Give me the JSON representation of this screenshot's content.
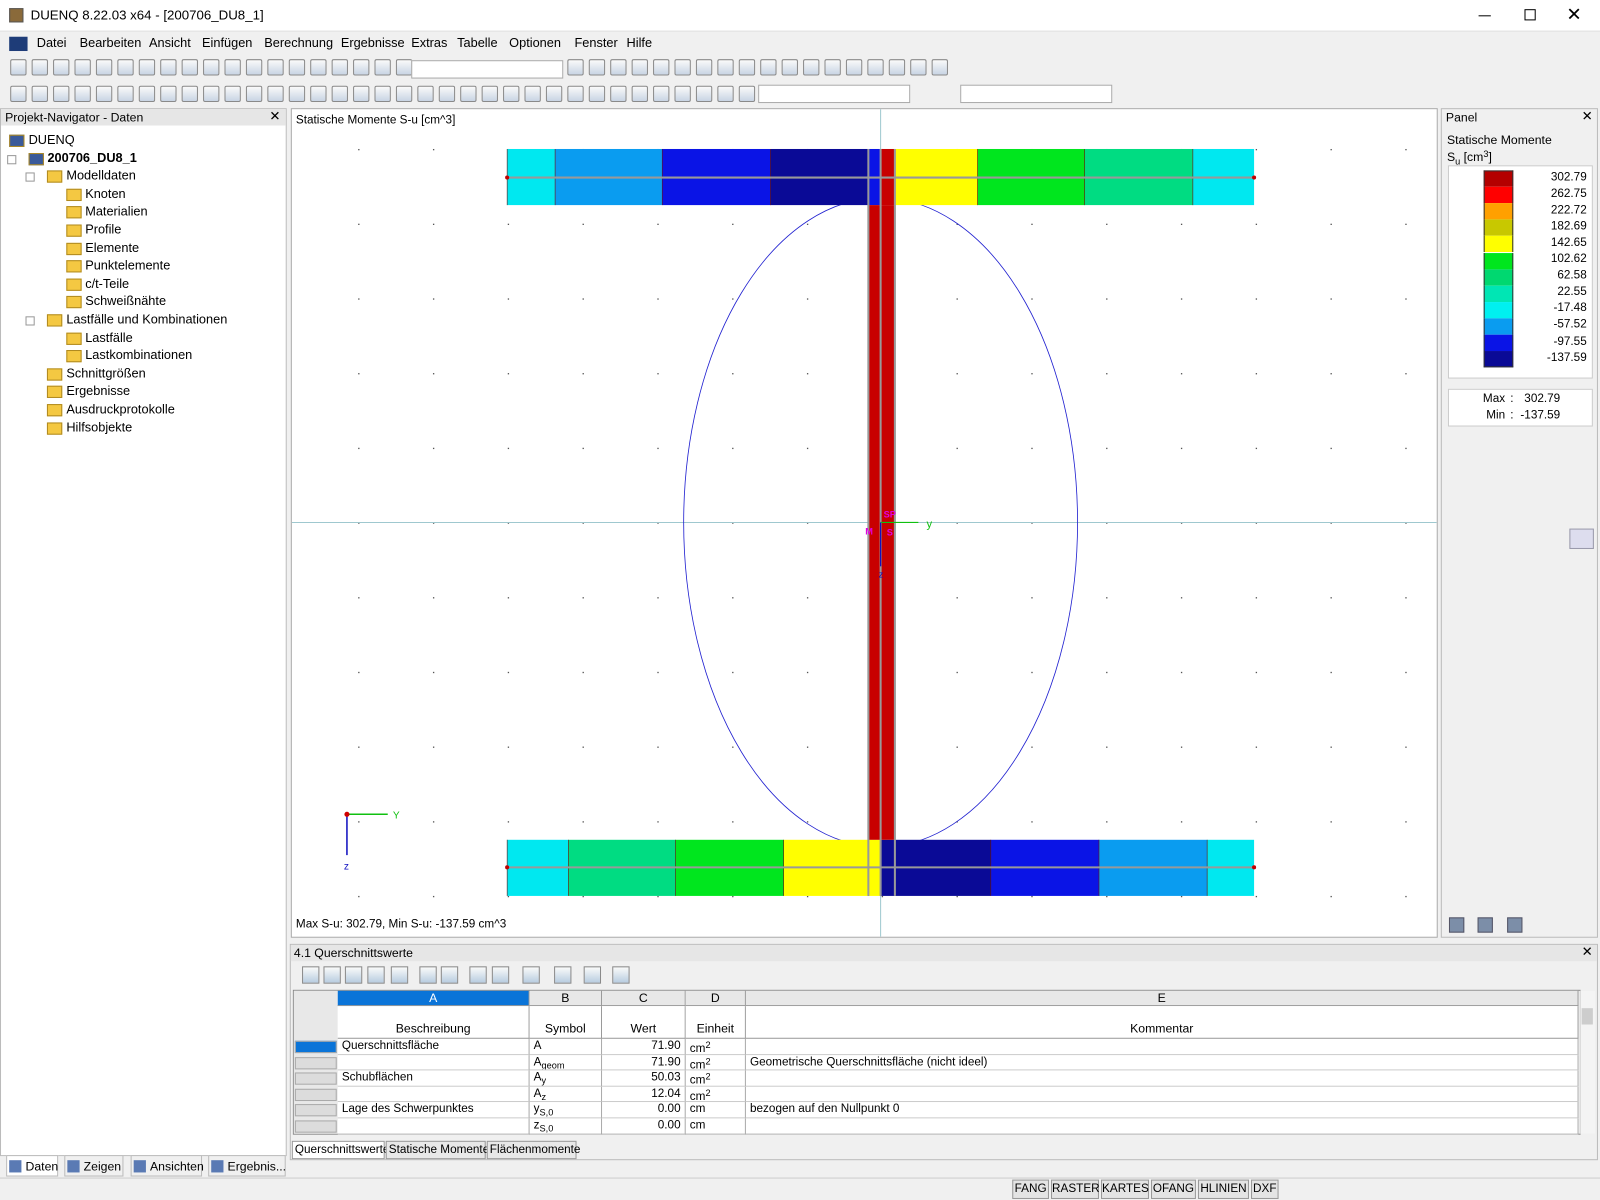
{
  "window": {
    "title": "DUENQ 8.22.03 x64 - [200706_DU8_1]"
  },
  "menu": [
    "Datei",
    "Bearbeiten",
    "Ansicht",
    "Einfügen",
    "Berechnung",
    "Ergebnisse",
    "Extras",
    "Tabelle",
    "Optionen",
    "Fenster",
    "Hilfe"
  ],
  "navigator": {
    "title": "Projekt-Navigator - Daten",
    "tree": {
      "label": "DUENQ",
      "children": [
        {
          "label": "200706_DU8_1",
          "children": [
            {
              "label": "Modelldaten",
              "children": [
                {
                  "label": "Knoten"
                },
                {
                  "label": "Materialien"
                },
                {
                  "label": "Profile"
                },
                {
                  "label": "Elemente"
                },
                {
                  "label": "Punktelemente"
                },
                {
                  "label": "c/t-Teile"
                },
                {
                  "label": "Schweißnähte"
                }
              ]
            },
            {
              "label": "Lastfälle und Kombinationen",
              "children": [
                {
                  "label": "Lastfälle"
                },
                {
                  "label": "Lastkombinationen"
                }
              ]
            },
            {
              "label": "Schnittgrößen"
            },
            {
              "label": "Ergebnisse"
            },
            {
              "label": "Ausdruckprotokolle"
            },
            {
              "label": "Hilfsobjekte"
            }
          ]
        }
      ]
    },
    "tabs": [
      "Daten",
      "Zeigen",
      "Ansichten",
      "Ergebnis..."
    ]
  },
  "view": {
    "title": "Statische Momente S-u [cm^3]",
    "footer": "Max S-u: 302.79, Min S-u: -137.59 cm^3",
    "center_labels": [
      "SP",
      "M",
      "S"
    ],
    "axis_y": "y",
    "axis_z": "z",
    "icon_y": "Y",
    "icon_z": "z"
  },
  "panel": {
    "title": "Panel",
    "heading": "Statische Momente",
    "unit": {
      "symbol": "S",
      "sub": "u",
      "open": " [cm",
      "sup": "3",
      "close": "]"
    },
    "legend": {
      "values": [
        "302.79",
        "262.75",
        "222.72",
        "182.69",
        "142.65",
        "102.62",
        "62.58",
        "22.55",
        "-17.48",
        "-57.52",
        "-97.55",
        "-137.59"
      ],
      "colors": [
        "#b40000",
        "#ff0000",
        "#ffa000",
        "#c8c800",
        "#ffff00",
        "#00e61e",
        "#00d870",
        "#00e6b4",
        "#00f0f0",
        "#0a9cf0",
        "#0a14e6",
        "#0a0a96"
      ]
    },
    "max_label": "Max",
    "max": "302.79",
    "min_label": "Min",
    "min": "-137.59",
    "sep": ":"
  },
  "table": {
    "title": "4.1 Querschnittswerte",
    "columns": [
      "A",
      "B",
      "C",
      "D",
      "E"
    ],
    "headers": [
      "Beschreibung",
      "Symbol",
      "Wert",
      "Einheit",
      "Kommentar"
    ],
    "rows": [
      {
        "description": "Querschnittsfläche",
        "symbol": "A",
        "value": "71.90",
        "unit": "cm",
        "unit_sup": "2"
      },
      {
        "symbol": "A",
        "symbol_sub": "geom",
        "value": "71.90",
        "unit": "cm",
        "unit_sup": "2",
        "comment": "Geometrische Querschnittsfläche (nicht ideel)"
      },
      {
        "description": "Schubflächen",
        "symbol": "A",
        "symbol_sub": "y",
        "value": "50.03",
        "unit": "cm",
        "unit_sup": "2"
      },
      {
        "symbol": "A",
        "symbol_sub": "z",
        "value": "12.04",
        "unit": "cm",
        "unit_sup": "2"
      },
      {
        "description": "Lage des Schwerpunktes",
        "symbol": "y",
        "symbol_sub": "S,0",
        "value": "0.00",
        "unit": "cm",
        "comment": "bezogen auf den Nullpunkt 0"
      },
      {
        "symbol": "z",
        "symbol_sub": "S,0",
        "value": "0.00",
        "unit": "cm"
      }
    ],
    "tabs": [
      "Querschnittswerte",
      "Statische Momente",
      "Flächenmomente"
    ]
  },
  "status": [
    "FANG",
    "RASTER",
    "KARTES",
    "OFANG",
    "HLINIEN",
    "DXF"
  ]
}
